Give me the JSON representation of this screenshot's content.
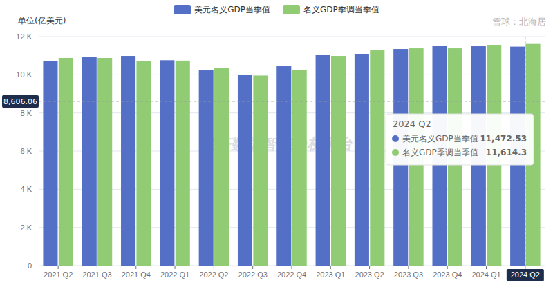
{
  "chart_data": {
    "type": "bar",
    "ylabel": "单位(亿美元)",
    "categories": [
      "2021 Q2",
      "2021 Q3",
      "2021 Q4",
      "2022 Q1",
      "2022 Q2",
      "2022 Q3",
      "2022 Q4",
      "2023 Q1",
      "2023 Q2",
      "2023 Q3",
      "2023 Q4",
      "2024 Q1",
      "2024 Q2"
    ],
    "series": [
      {
        "name": "美元名义GDP当季值",
        "color": "#5470c6",
        "values": [
          10730,
          10915,
          10987,
          10760,
          10228,
          9980,
          10445,
          11060,
          11096,
          11348,
          11529,
          11493,
          11472.53
        ]
      },
      {
        "name": "名义GDP季调当季值",
        "color": "#91cc75",
        "values": [
          10880,
          10880,
          10734,
          10740,
          10373,
          9960,
          10264,
          10987,
          11276,
          11384,
          11384,
          11565,
          11614.3
        ]
      }
    ],
    "ylim": [
      0,
      12000
    ],
    "yticks": [
      0,
      {
        "value": 2000,
        "label": "2 K"
      },
      {
        "value": 4000,
        "label": "4 K"
      },
      {
        "value": 6000,
        "label": "6 K"
      },
      {
        "value": 8000,
        "label": "8 K"
      },
      {
        "value": 10000,
        "label": "10 K"
      },
      {
        "value": 12000,
        "label": "12 K"
      }
    ],
    "grid": true,
    "legend": "top",
    "crosshair": {
      "value": 8606.06,
      "label": "8,606.06"
    },
    "tooltip": {
      "title": "2024 Q2",
      "items": [
        {
          "name": "美元名义GDP当季值",
          "label": "11,472.53"
        },
        {
          "name": "名义GDP季调当季值",
          "label": "11,614.3"
        }
      ]
    },
    "watermarks": [
      "经济数据智能分析平台",
      "雪球：北海居"
    ]
  }
}
